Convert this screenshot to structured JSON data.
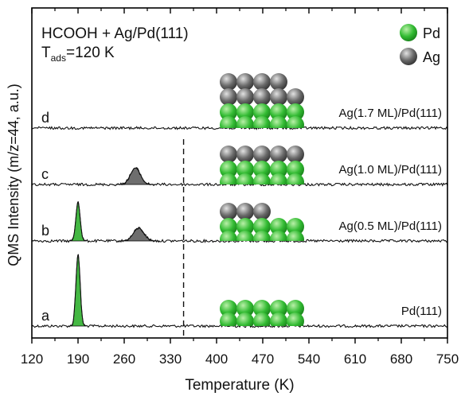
{
  "chart_data": {
    "type": "line",
    "title": "HCOOH + Ag/Pd(111)",
    "subtitle": {
      "main": "T",
      "sub": "ads",
      "rest": "=120 K"
    },
    "xlabel": "Temperature (K)",
    "ylabel": "QMS Intensity (m/z=44, a.u.)",
    "xlim": [
      120,
      750
    ],
    "xticks": [
      "120",
      "190",
      "260",
      "330",
      "400",
      "470",
      "540",
      "610",
      "680",
      "750"
    ],
    "y_ticks_labeled": false,
    "grid": false,
    "reference_line_x": 350,
    "legend": {
      "placement": "top-right",
      "items": [
        {
          "label": "Pd",
          "color": "#33bb33"
        },
        {
          "label": "Ag",
          "color": "#6a6a6a"
        }
      ]
    },
    "series": [
      {
        "name": "Pd(111)",
        "letter": "a",
        "baseline": 0.0,
        "peaks": [
          {
            "center": 190,
            "height": 1.0,
            "fill": "#44b843"
          }
        ]
      },
      {
        "name": "Ag(0.5 ML)/Pd(111)",
        "letter": "b",
        "baseline": 1.0,
        "peaks": [
          {
            "center": 190,
            "height": 0.55,
            "fill": "#44b843"
          },
          {
            "center": 282,
            "height": 0.18,
            "fill": "#6e6e6e"
          }
        ]
      },
      {
        "name": "Ag(1.0 ML)/Pd(111)",
        "letter": "c",
        "baseline": 2.0,
        "peaks": [
          {
            "center": 277,
            "height": 0.23,
            "fill": "#6e6e6e"
          }
        ]
      },
      {
        "name": "Ag(1.7 ML)/Pd(111)",
        "letter": "d",
        "baseline": 3.0,
        "peaks": []
      }
    ]
  }
}
